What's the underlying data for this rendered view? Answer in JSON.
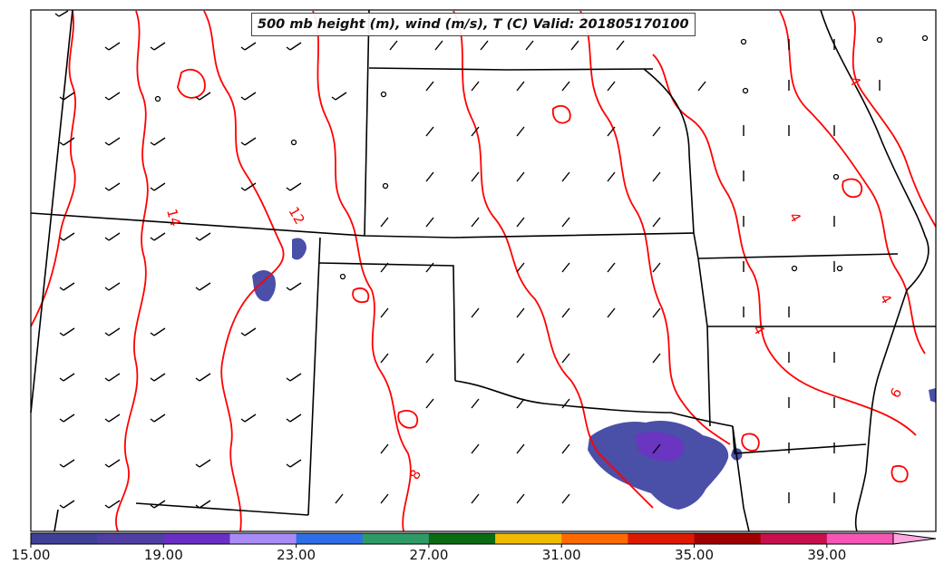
{
  "map": {
    "title": "500 mb height (m), wind (m/s), T (C) Valid: 201805170100",
    "contour_color": "#ff0000",
    "state_line_color": "#000000",
    "contour_labels": [
      "14",
      "12",
      "4",
      "4",
      "4",
      "4",
      "8",
      "6"
    ]
  },
  "colorbar": {
    "tick_labels": [
      "15.00",
      "19.00",
      "23.00",
      "27.00",
      "31.00",
      "35.00",
      "39.00"
    ],
    "colors": [
      "#3f4196",
      "#4f3fa2",
      "#6a2fc4",
      "#a98bf6",
      "#2f6fe6",
      "#2e9a66",
      "#0a6b12",
      "#efbb00",
      "#ff6a00",
      "#dd1a00",
      "#a00000",
      "#c8104e",
      "#f556b5",
      "#ffa8e0"
    ]
  }
}
